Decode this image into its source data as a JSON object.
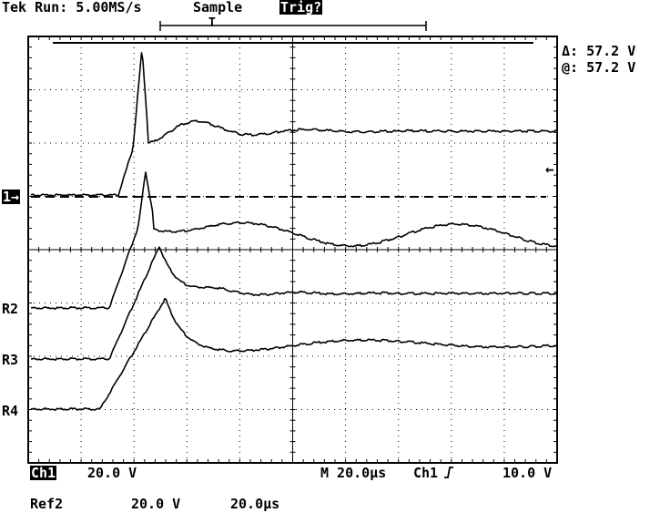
{
  "header": {
    "brand": "Tek",
    "run_status": "Run: 5.00MS/s",
    "acq_mode": "Sample",
    "trig_state": "Trig?",
    "trigger_marker": "T"
  },
  "cursor_readout": {
    "delta": "Δ: 57.2 V",
    "at": "@: 57.2 V"
  },
  "channel_markers": {
    "ch1": "1→",
    "r2": "R2",
    "r3": "R3",
    "r4": "R4"
  },
  "status_bar": {
    "ch1_label": "Ch1",
    "ch1_scale": "20.0 V",
    "timebase": "M 20.0µs",
    "trig_source": "Ch1",
    "trig_slope_icon": "rising-edge-icon",
    "trig_level": "10.0 V"
  },
  "ref_line": {
    "label": "Ref2",
    "volts": "20.0 V",
    "time": "20.0µs"
  },
  "display": {
    "grid_divisions_x": 10,
    "grid_divisions_y": 8,
    "background": "#ffffff",
    "trace_color": "#000000"
  }
}
